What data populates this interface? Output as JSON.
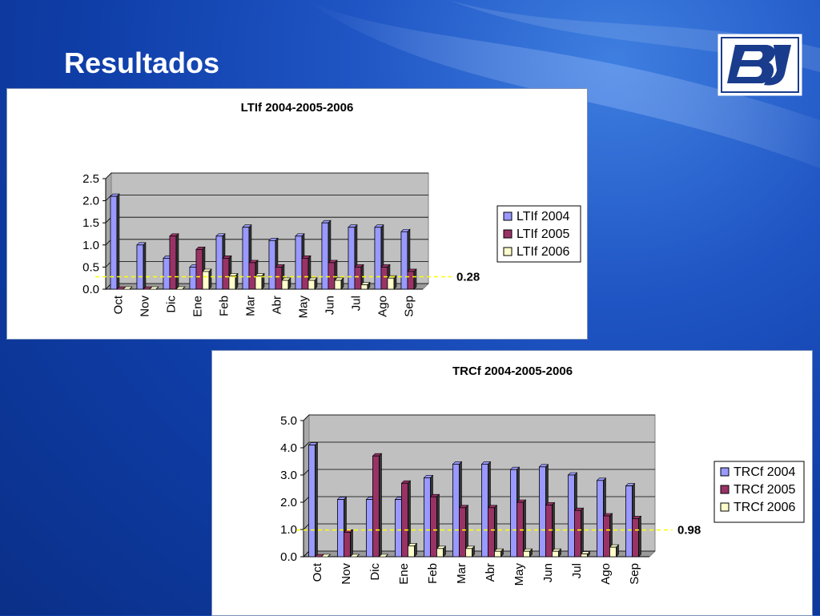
{
  "slide": {
    "title": "Resultados",
    "logo_text": "BJ"
  },
  "colors": {
    "series_2004": "#9999ff",
    "series_2005": "#993366",
    "series_2006": "#ffffcc",
    "plot_bg": "#c0c0c0",
    "reference_line": "#ffff00",
    "panel_bg": "#ffffff"
  },
  "chart_data": [
    {
      "type": "bar",
      "title": "LTIf 2004-2005-2006",
      "categories": [
        "Oct",
        "Nov",
        "Dic",
        "Ene",
        "Feb",
        "Mar",
        "Abr",
        "May",
        "Jun",
        "Jul",
        "Ago",
        "Sep"
      ],
      "series": [
        {
          "name": "LTIf 2004",
          "values": [
            2.1,
            1.0,
            0.7,
            0.5,
            1.2,
            1.4,
            1.1,
            1.2,
            1.5,
            1.4,
            1.4,
            1.3
          ]
        },
        {
          "name": "LTIf 2005",
          "values": [
            0.0,
            0.0,
            1.2,
            0.9,
            0.7,
            0.6,
            0.5,
            0.7,
            0.6,
            0.5,
            0.5,
            0.4
          ]
        },
        {
          "name": "LTIf 2006",
          "values": [
            0.0,
            0.0,
            0.0,
            0.4,
            0.3,
            0.3,
            0.2,
            0.2,
            0.2,
            0.1,
            0.25,
            null
          ]
        }
      ],
      "ylim": [
        0,
        2.5
      ],
      "yticks": [
        "0.0",
        "0.5",
        "1.0",
        "1.5",
        "2.0",
        "2.5"
      ],
      "reference": {
        "value": 0.28,
        "label": "0.28"
      },
      "grid": true,
      "legend": "right"
    },
    {
      "type": "bar",
      "title": "TRCf 2004-2005-2006",
      "categories": [
        "Oct",
        "Nov",
        "Dic",
        "Ene",
        "Feb",
        "Mar",
        "Abr",
        "May",
        "Jun",
        "Jul",
        "Ago",
        "Sep"
      ],
      "series": [
        {
          "name": "TRCf 2004",
          "values": [
            4.1,
            2.1,
            2.1,
            2.1,
            2.9,
            3.4,
            3.4,
            3.2,
            3.3,
            3.0,
            2.8,
            2.6
          ]
        },
        {
          "name": "TRCf 2005",
          "values": [
            0.0,
            0.9,
            3.7,
            2.7,
            2.2,
            1.8,
            1.8,
            2.0,
            1.9,
            1.7,
            1.5,
            1.4
          ]
        },
        {
          "name": "TRCf 2006",
          "values": [
            0.0,
            0.0,
            0.0,
            0.4,
            0.3,
            0.3,
            0.2,
            0.2,
            0.2,
            0.1,
            0.35,
            null
          ]
        }
      ],
      "ylim": [
        0,
        5.0
      ],
      "yticks": [
        "0.0",
        "1.0",
        "2.0",
        "3.0",
        "4.0",
        "5.0"
      ],
      "reference": {
        "value": 0.98,
        "label": "0.98"
      },
      "grid": true,
      "legend": "right"
    }
  ]
}
